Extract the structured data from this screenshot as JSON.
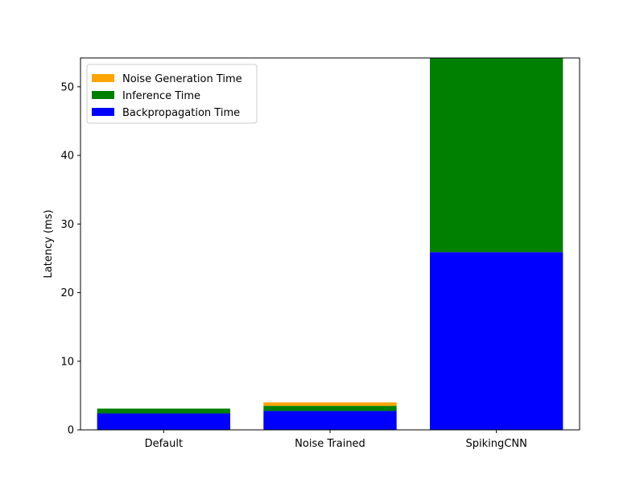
{
  "chart_data": {
    "type": "bar",
    "stacked": true,
    "categories": [
      "Default",
      "Noise Trained",
      "SpikingCNN"
    ],
    "series": [
      {
        "name": "Backpropagation Time",
        "color": "#0000ff",
        "values": [
          2.4,
          2.75,
          25.9
        ]
      },
      {
        "name": "Inference Time",
        "color": "#008000",
        "values": [
          0.7,
          0.75,
          28.3
        ]
      },
      {
        "name": "Noise Generation Time",
        "color": "#ffa500",
        "values": [
          0.0,
          0.5,
          0.0
        ]
      }
    ],
    "title": "",
    "xlabel": "",
    "ylabel": "Latency (ms)",
    "ylim": [
      0,
      54.2
    ],
    "yticks": [
      0,
      10,
      20,
      30,
      40,
      50
    ],
    "grid": false,
    "legend_position": "top-left",
    "legend_order": [
      "Noise Generation Time",
      "Inference Time",
      "Backpropagation Time"
    ]
  }
}
